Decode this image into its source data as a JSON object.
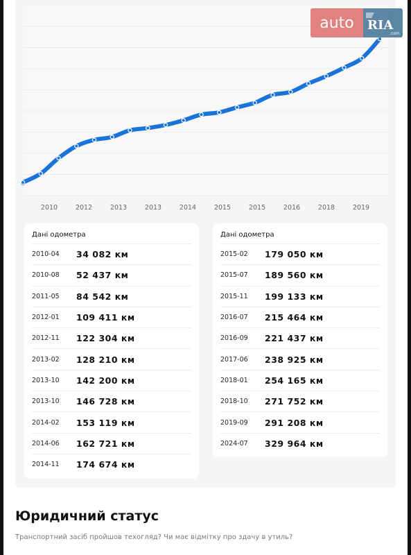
{
  "watermark": {
    "auto": "auto",
    "ria": "RIA",
    "ria_small": ".com"
  },
  "chart_data": {
    "type": "line",
    "x_tick_labels": [
      "2010",
      "2012",
      "2013",
      "2013",
      "2014",
      "2015",
      "2015",
      "2016",
      "2018",
      "2019"
    ],
    "x": [
      "2010-04",
      "2010-08",
      "2011-05",
      "2012-01",
      "2012-11",
      "2013-02",
      "2013-10",
      "2013-10",
      "2014-02",
      "2014-06",
      "2014-11",
      "2015-02",
      "2015-07",
      "2015-11",
      "2016-07",
      "2016-09",
      "2017-06",
      "2018-01",
      "2018-10",
      "2019-09",
      "2024-07"
    ],
    "series": [
      {
        "values": [
          34082,
          52437,
          84542,
          109411,
          122304,
          128210,
          142200,
          146728,
          153119,
          162721,
          174674,
          179050,
          189560,
          199133,
          215464,
          221437,
          238925,
          254165,
          271752,
          291208,
          329964
        ]
      }
    ],
    "ylim": [
      0,
      340000
    ],
    "grid": true,
    "colors": {
      "line": "#1a73d9",
      "point_fill": "#1a73d9",
      "point_stroke": "#ffffff"
    }
  },
  "odometer_left": {
    "title": "Дані одометра",
    "rows": [
      {
        "date": "2010-04",
        "km": "34 082 км"
      },
      {
        "date": "2010-08",
        "km": "52 437 км"
      },
      {
        "date": "2011-05",
        "km": "84 542 км"
      },
      {
        "date": "2012-01",
        "km": "109 411 км"
      },
      {
        "date": "2012-11",
        "km": "122 304 км"
      },
      {
        "date": "2013-02",
        "km": "128 210 км"
      },
      {
        "date": "2013-10",
        "km": "142 200 км"
      },
      {
        "date": "2013-10",
        "km": "146 728 км"
      },
      {
        "date": "2014-02",
        "km": "153 119 км"
      },
      {
        "date": "2014-06",
        "km": "162 721 км"
      },
      {
        "date": "2014-11",
        "km": "174 674 км"
      }
    ]
  },
  "odometer_right": {
    "title": "Дані одометра",
    "rows": [
      {
        "date": "2015-02",
        "km": "179 050 км"
      },
      {
        "date": "2015-07",
        "km": "189 560 км"
      },
      {
        "date": "2015-11",
        "km": "199 133 км"
      },
      {
        "date": "2016-07",
        "km": "215 464 км"
      },
      {
        "date": "2016-09",
        "km": "221 437 км"
      },
      {
        "date": "2017-06",
        "km": "238 925 км"
      },
      {
        "date": "2018-01",
        "km": "254 165 км"
      },
      {
        "date": "2018-10",
        "km": "271 752 км"
      },
      {
        "date": "2019-09",
        "km": "291 208 км"
      },
      {
        "date": "2024-07",
        "km": "329 964 км"
      }
    ]
  },
  "legal": {
    "title": "Юридичний статус",
    "subtitle": "Транспортний засіб пройшов техогляд? Чи має відмітку про здачу в утиль?"
  }
}
